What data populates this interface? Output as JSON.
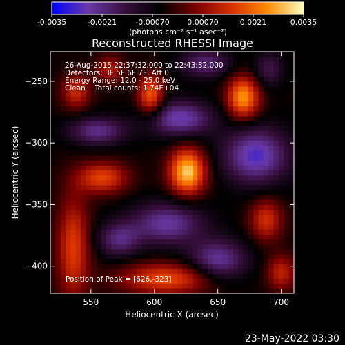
{
  "chart_data": {
    "type": "heatmap",
    "title": "Reconstructed RHESSI Image",
    "xlabel": "Heliocentric X (arcsec)",
    "ylabel": "Heliocentric Y (arcsec)",
    "xlim": [
      518,
      710
    ],
    "ylim": [
      -422,
      -226
    ],
    "x_ticks": [
      550,
      600,
      650,
      700
    ],
    "y_ticks": [
      -250,
      -300,
      -350,
      -400
    ],
    "annotations": [
      "26-Aug-2015 22:37:32.000 to 22:43:32.000",
      "Detectors: 3F 5F 6F 7F, Att 0",
      "Energy Range: 12.0 - 25.0 keV",
      "Clean    Total counts: 1.74E+04"
    ],
    "peak_label": "Position of Peak = [626,-323]",
    "peak": {
      "x": 626,
      "y": -323
    },
    "footer_date": "23-May-2022 03:30",
    "colorbar": {
      "range": [
        -0.0035,
        0.0035
      ],
      "tick_labels": [
        "-0.0035",
        "-0.0021",
        "-0.00070",
        "0.00070",
        "0.0021",
        "0.0035"
      ],
      "unit_label": "(photons cm⁻² s⁻¹ asec⁻²)",
      "colors": [
        "#0000ff",
        "#6a3aa8",
        "#3a1040",
        "#000000",
        "#7a0000",
        "#d83000",
        "#ff8c00",
        "#ffffc0"
      ]
    },
    "sources": [
      {
        "x": 626,
        "y": -323,
        "sx": 10,
        "sy": 13,
        "amp": 0.0035
      },
      {
        "x": 670,
        "y": -263,
        "sx": 9,
        "sy": 12,
        "amp": 0.003
      },
      {
        "x": 597,
        "y": -261,
        "sx": 7,
        "sy": 12,
        "amp": 0.0024
      },
      {
        "x": 559,
        "y": -328,
        "sx": 14,
        "sy": 9,
        "amp": 0.0021
      },
      {
        "x": 536,
        "y": -385,
        "sx": 9,
        "sy": 30,
        "amp": 0.002
      },
      {
        "x": 610,
        "y": -410,
        "sx": 26,
        "sy": 9,
        "amp": 0.0022
      },
      {
        "x": 688,
        "y": -362,
        "sx": 9,
        "sy": 12,
        "amp": 0.0018
      },
      {
        "x": 700,
        "y": -405,
        "sx": 8,
        "sy": 10,
        "amp": 0.0016
      },
      {
        "x": 538,
        "y": -258,
        "sx": 8,
        "sy": 10,
        "amp": 0.0017
      },
      {
        "x": 565,
        "y": -240,
        "sx": 8,
        "sy": 8,
        "amp": 0.0014
      },
      {
        "x": 620,
        "y": -280,
        "sx": 18,
        "sy": 10,
        "amp": -0.0022
      },
      {
        "x": 680,
        "y": -310,
        "sx": 18,
        "sy": 16,
        "amp": -0.0024
      },
      {
        "x": 555,
        "y": -290,
        "sx": 16,
        "sy": 8,
        "amp": -0.0018
      },
      {
        "x": 610,
        "y": -365,
        "sx": 20,
        "sy": 12,
        "amp": -0.002
      },
      {
        "x": 640,
        "y": -235,
        "sx": 14,
        "sy": 8,
        "amp": -0.0016
      },
      {
        "x": 690,
        "y": -240,
        "sx": 8,
        "sy": 10,
        "amp": -0.0012
      },
      {
        "x": 650,
        "y": -395,
        "sx": 16,
        "sy": 12,
        "amp": -0.002
      },
      {
        "x": 572,
        "y": -378,
        "sx": 12,
        "sy": 10,
        "amp": -0.0016
      }
    ]
  }
}
